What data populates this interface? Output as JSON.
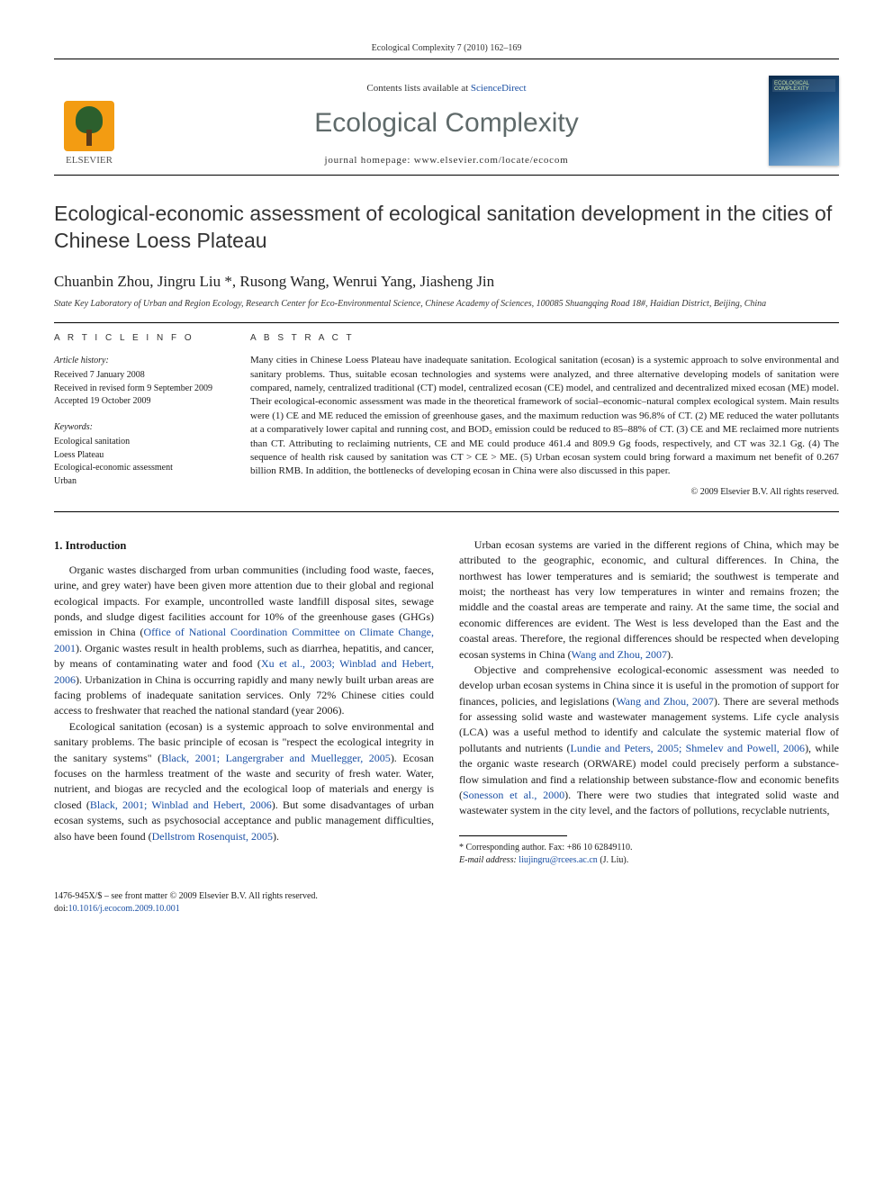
{
  "running_head": "Ecological Complexity 7 (2010) 162–169",
  "masthead": {
    "contents_prefix": "Contents lists available at ",
    "contents_link": "ScienceDirect",
    "journal": "Ecological Complexity",
    "homepage_prefix": "journal homepage: ",
    "homepage": "www.elsevier.com/locate/ecocom",
    "publisher": "ELSEVIER",
    "cover_label": "ECOLOGICAL COMPLEXITY"
  },
  "title": "Ecological-economic assessment of ecological sanitation development in the cities of Chinese Loess Plateau",
  "authors": "Chuanbin Zhou, Jingru Liu *, Rusong Wang, Wenrui Yang, Jiasheng Jin",
  "affiliation": "State Key Laboratory of Urban and Region Ecology, Research Center for Eco-Environmental Science, Chinese Academy of Sciences, 100085 Shuangqing Road 18#, Haidian District, Beijing, China",
  "article_info": {
    "head": "A R T I C L E  I N F O",
    "history_label": "Article history:",
    "received": "Received 7 January 2008",
    "revised": "Received in revised form 9 September 2009",
    "accepted": "Accepted 19 October 2009",
    "keywords_label": "Keywords:",
    "keywords": [
      "Ecological sanitation",
      "Loess Plateau",
      "Ecological-economic assessment",
      "Urban"
    ]
  },
  "abstract": {
    "head": "A B S T R A C T",
    "text": "Many cities in Chinese Loess Plateau have inadequate sanitation. Ecological sanitation (ecosan) is a systemic approach to solve environmental and sanitary problems. Thus, suitable ecosan technologies and systems were analyzed, and three alternative developing models of sanitation were compared, namely, centralized traditional (CT) model, centralized ecosan (CE) model, and centralized and decentralized mixed ecosan (ME) model. Their ecological-economic assessment was made in the theoretical framework of social–economic–natural complex ecological system. Main results were (1) CE and ME reduced the emission of greenhouse gases, and the maximum reduction was 96.8% of CT. (2) ME reduced the water pollutants at a comparatively lower capital and running cost, and BOD₅ emission could be reduced to 85–88% of CT. (3) CE and ME reclaimed more nutrients than CT. Attributing to reclaiming nutrients, CE and ME could produce 461.4 and 809.9 Gg foods, respectively, and CT was 32.1 Gg. (4) The sequence of health risk caused by sanitation was CT > CE > ME. (5) Urban ecosan system could bring forward a maximum net benefit of 0.267 billion RMB. In addition, the bottlenecks of developing ecosan in China were also discussed in this paper.",
    "copyright": "© 2009 Elsevier B.V. All rights reserved."
  },
  "section1": {
    "heading": "1. Introduction",
    "p1a": "Organic wastes discharged from urban communities (including food waste, faeces, urine, and grey water) have been given more attention due to their global and regional ecological impacts. For example, uncontrolled waste landfill disposal sites, sewage ponds, and sludge digest facilities account for 10% of the greenhouse gases (GHGs) emission in China (",
    "p1_ref1": "Office of National Coordination Committee on Climate Change, 2001",
    "p1b": "). Organic wastes result in health problems, such as diarrhea, hepatitis, and cancer, by means of contaminating water and food (",
    "p1_ref2": "Xu et al., 2003; Winblad and Hebert, 2006",
    "p1c": "). Urbanization in China is occurring rapidly and many newly built urban areas are facing problems of inadequate sanitation services. Only 72% Chinese cities could access to freshwater that reached the national standard (year 2006).",
    "p2a": "Ecological sanitation (ecosan) is a systemic approach to solve environmental and sanitary problems. The basic principle of ecosan is \"respect the ecological integrity in the sanitary systems\" (",
    "p2_ref1": "Black, 2001; Langergraber and Muellegger, 2005",
    "p2b": "). Ecosan focuses on the harmless treatment of the waste and security of fresh water. Water, nutrient, and biogas are recycled and the ecological loop of materials and energy is closed (",
    "p2_ref2": "Black, 2001; Winblad and Hebert, ",
    "p2_ref2b": "2006",
    "p2c": "). But some disadvantages of urban ecosan systems, such as psychosocial acceptance and public management difficulties, also have been found (",
    "p2_ref3": "Dellstrom Rosenquist, 2005",
    "p2d": ").",
    "p3a": "Urban ecosan systems are varied in the different regions of China, which may be attributed to the geographic, economic, and cultural differences. In China, the northwest has lower temperatures and is semiarid; the southwest is temperate and moist; the northeast has very low temperatures in winter and remains frozen; the middle and the coastal areas are temperate and rainy. At the same time, the social and economic differences are evident. The West is less developed than the East and the coastal areas. Therefore, the regional differences should be respected when developing ecosan systems in China (",
    "p3_ref1": "Wang and Zhou, 2007",
    "p3b": ").",
    "p4a": "Objective and comprehensive ecological-economic assessment was needed to develop urban ecosan systems in China since it is useful in the promotion of support for finances, policies, and legislations (",
    "p4_ref1": "Wang and Zhou, 2007",
    "p4b": "). There are several methods for assessing solid waste and wastewater management systems. Life cycle analysis (LCA) was a useful method to identify and calculate the systemic material flow of pollutants and nutrients (",
    "p4_ref2": "Lundie and Peters, 2005; Shmelev and Powell, 2006",
    "p4c": "), while the organic waste research (ORWARE) model could precisely perform a substance-flow simulation and find a relationship between substance-flow and economic benefits (",
    "p4_ref3": "Sonesson et al., 2000",
    "p4d": "). There were two studies that integrated solid waste and wastewater system in the city level, and the factors of pollutions, recyclable nutrients,"
  },
  "footnote": {
    "corr": "* Corresponding author. Fax: +86 10 62849110.",
    "email_label": "E-mail address: ",
    "email": "liujingru@rcees.ac.cn",
    "email_who": " (J. Liu)."
  },
  "bottom": {
    "issn": "1476-945X/$ – see front matter © 2009 Elsevier B.V. All rights reserved.",
    "doi_label": "doi:",
    "doi": "10.1016/j.ecocom.2009.10.001"
  },
  "colors": {
    "link": "#1a4fa3",
    "journal_grey": "#5f6a6a",
    "logo_orange": "#f39c12",
    "logo_green": "#2c5f2d"
  }
}
